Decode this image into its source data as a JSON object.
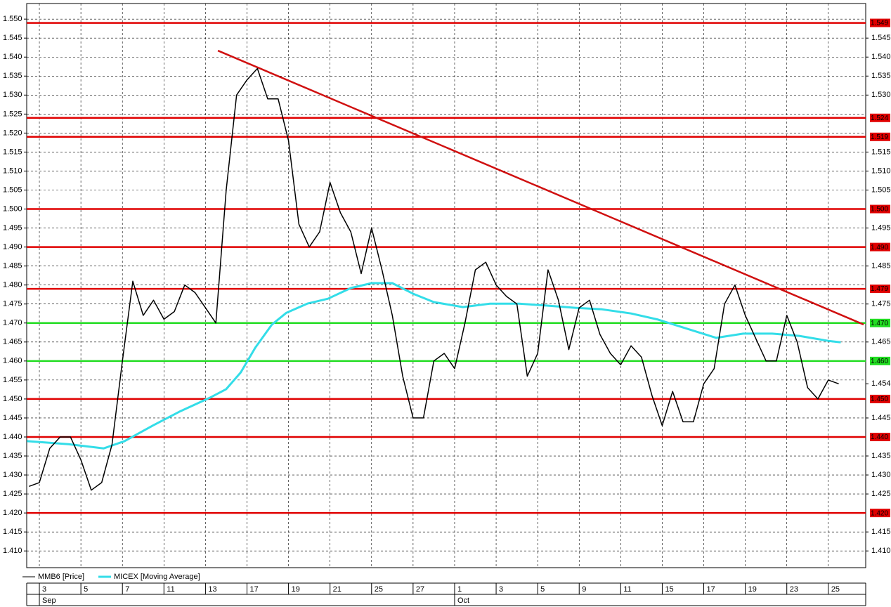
{
  "chart_data": {
    "type": "line",
    "xlim": [
      -0.61,
      39.8
    ],
    "ylim": [
      1.4056,
      1.5541
    ],
    "grid": true,
    "xticks": [
      {
        "value": 0,
        "label": "3"
      },
      {
        "value": 2,
        "label": "5"
      },
      {
        "value": 4,
        "label": "7"
      },
      {
        "value": 6,
        "label": "11"
      },
      {
        "value": 8,
        "label": "13"
      },
      {
        "value": 10,
        "label": "17"
      },
      {
        "value": 12,
        "label": "19"
      },
      {
        "value": 14,
        "label": "21"
      },
      {
        "value": 16,
        "label": "25"
      },
      {
        "value": 18,
        "label": "27"
      },
      {
        "value": 20,
        "label": "1"
      },
      {
        "value": 22,
        "label": "3"
      },
      {
        "value": 24,
        "label": "5"
      },
      {
        "value": 26,
        "label": "9"
      },
      {
        "value": 28,
        "label": "11"
      },
      {
        "value": 30,
        "label": "15"
      },
      {
        "value": 32,
        "label": "17"
      },
      {
        "value": 34,
        "label": "19"
      },
      {
        "value": 36,
        "label": "23"
      },
      {
        "value": 38,
        "label": "25"
      }
    ],
    "months": [
      {
        "value": 0,
        "label": "Sep"
      },
      {
        "value": 20,
        "label": "Oct"
      }
    ],
    "yticks": [
      {
        "value": 1.41,
        "label": "1.410"
      },
      {
        "value": 1.415,
        "label": "1.415"
      },
      {
        "value": 1.42,
        "label": "1.420"
      },
      {
        "value": 1.425,
        "label": "1.425"
      },
      {
        "value": 1.43,
        "label": "1.430"
      },
      {
        "value": 1.435,
        "label": "1.435"
      },
      {
        "value": 1.44,
        "label": "1.440"
      },
      {
        "value": 1.445,
        "label": "1.445"
      },
      {
        "value": 1.45,
        "label": "1.450"
      },
      {
        "value": 1.455,
        "label": "1.455"
      },
      {
        "value": 1.46,
        "label": "1.460"
      },
      {
        "value": 1.465,
        "label": "1.465"
      },
      {
        "value": 1.47,
        "label": "1.470"
      },
      {
        "value": 1.475,
        "label": "1.475"
      },
      {
        "value": 1.48,
        "label": "1.480"
      },
      {
        "value": 1.485,
        "label": "1.485"
      },
      {
        "value": 1.49,
        "label": "1.490"
      },
      {
        "value": 1.495,
        "label": "1.495"
      },
      {
        "value": 1.5,
        "label": "1.500"
      },
      {
        "value": 1.505,
        "label": "1.505"
      },
      {
        "value": 1.51,
        "label": "1.510"
      },
      {
        "value": 1.515,
        "label": "1.515"
      },
      {
        "value": 1.52,
        "label": "1.520"
      },
      {
        "value": 1.525,
        "label": "1.525"
      },
      {
        "value": 1.53,
        "label": "1.530"
      },
      {
        "value": 1.535,
        "label": "1.535"
      },
      {
        "value": 1.54,
        "label": "1.540"
      },
      {
        "value": 1.545,
        "label": "1.545"
      },
      {
        "value": 1.55,
        "label": "1.550"
      }
    ],
    "y2ticks": [
      {
        "value": 1.41,
        "label": "1.410"
      },
      {
        "value": 1.415,
        "label": "1.415"
      },
      {
        "value": 1.425,
        "label": "1.425"
      },
      {
        "value": 1.43,
        "label": "1.430"
      },
      {
        "value": 1.435,
        "label": "1.435"
      },
      {
        "value": 1.445,
        "label": "1.445"
      },
      {
        "value": 1.454,
        "label": "1.454"
      },
      {
        "value": 1.465,
        "label": "1.465"
      },
      {
        "value": 1.475,
        "label": "1.475"
      },
      {
        "value": 1.485,
        "label": "1.485"
      },
      {
        "value": 1.495,
        "label": "1.495"
      },
      {
        "value": 1.505,
        "label": "1.505"
      },
      {
        "value": 1.51,
        "label": "1.510"
      },
      {
        "value": 1.515,
        "label": "1.515"
      },
      {
        "value": 1.53,
        "label": "1.530"
      },
      {
        "value": 1.535,
        "label": "1.535"
      },
      {
        "value": 1.54,
        "label": "1.540"
      },
      {
        "value": 1.545,
        "label": "1.545"
      }
    ],
    "levels": [
      {
        "value": 1.549,
        "label": "1.549",
        "color": "#e00000"
      },
      {
        "value": 1.524,
        "label": "1.524",
        "color": "#e00000"
      },
      {
        "value": 1.519,
        "label": "1.519",
        "color": "#e00000"
      },
      {
        "value": 1.5,
        "label": "1.500",
        "color": "#e00000"
      },
      {
        "value": 1.49,
        "label": "1.490",
        "color": "#e00000"
      },
      {
        "value": 1.479,
        "label": "1.479",
        "color": "#e00000"
      },
      {
        "value": 1.47,
        "label": "1.470",
        "color": "#22dd22"
      },
      {
        "value": 1.46,
        "label": "1.460",
        "color": "#22dd22"
      },
      {
        "value": 1.45,
        "label": "1.450",
        "color": "#e00000"
      },
      {
        "value": 1.44,
        "label": "1.440",
        "color": "#e00000"
      },
      {
        "value": 1.42,
        "label": "1.420",
        "color": "#e00000"
      }
    ],
    "trendline": {
      "x": [
        8.6,
        39.7
      ],
      "y": [
        1.5417,
        1.4696
      ],
      "color": "#d01010"
    },
    "series": [
      {
        "name": "MMB6 [Price]",
        "color": "#000000",
        "x": [
          -0.5,
          0,
          0.5,
          1,
          1.5,
          2,
          2.5,
          3,
          3.5,
          4,
          4.5,
          5,
          5.5,
          6,
          6.5,
          7,
          7.5,
          8,
          8.5,
          9,
          9.5,
          10,
          10.5,
          11,
          11.5,
          12,
          12.5,
          13,
          13.5,
          14,
          14.5,
          15,
          15.5,
          16,
          16.5,
          17,
          17.5,
          18,
          18.5,
          19,
          19.5,
          20,
          20.5,
          21,
          21.5,
          22,
          22.5,
          23,
          23.5,
          24,
          24.5,
          25,
          25.5,
          26,
          26.5,
          27,
          27.5,
          28,
          28.5,
          29,
          29.5,
          30,
          30.5,
          31,
          31.5,
          32,
          32.5,
          33,
          33.5,
          34,
          34.5,
          35,
          35.5,
          36,
          36.5,
          37,
          37.5,
          38,
          38.5
        ],
        "values": [
          1.427,
          1.428,
          1.437,
          1.44,
          1.44,
          1.434,
          1.426,
          1.428,
          1.438,
          1.46,
          1.481,
          1.472,
          1.476,
          1.471,
          1.473,
          1.48,
          1.478,
          1.474,
          1.47,
          1.505,
          1.53,
          1.534,
          1.537,
          1.529,
          1.529,
          1.518,
          1.496,
          1.49,
          1.494,
          1.507,
          1.499,
          1.494,
          1.483,
          1.495,
          1.484,
          1.472,
          1.456,
          1.445,
          1.445,
          1.46,
          1.462,
          1.458,
          1.47,
          1.484,
          1.486,
          1.48,
          1.477,
          1.475,
          1.456,
          1.462,
          1.484,
          1.476,
          1.463,
          1.474,
          1.476,
          1.467,
          1.462,
          1.459,
          1.464,
          1.461,
          1.451,
          1.443,
          1.452,
          1.444,
          1.444,
          1.454,
          1.458,
          1.475,
          1.48,
          1.472,
          1.466,
          1.46,
          1.46,
          1.472,
          1.465,
          1.453,
          1.45,
          1.455,
          1.454
        ]
      },
      {
        "name": "MICEX [Moving Average]",
        "color": "#33dde8",
        "x": [
          -0.6,
          1.4,
          3.1,
          4.1,
          5.5,
          6.8,
          8.2,
          9.0,
          9.7,
          10.4,
          11.2,
          11.9,
          12.9,
          13.9,
          15.0,
          16.0,
          17.0,
          18.0,
          19.0,
          20.4,
          21.7,
          23.1,
          24.4,
          25.8,
          27.1,
          28.5,
          29.8,
          31.2,
          32.6,
          33.9,
          35.3,
          36.6,
          38.0,
          38.6
        ],
        "values": [
          1.4389,
          1.4381,
          1.437,
          1.4389,
          1.4431,
          1.4468,
          1.4503,
          1.4526,
          1.457,
          1.4635,
          1.4696,
          1.4727,
          1.4751,
          1.4764,
          1.4792,
          1.4805,
          1.4805,
          1.4777,
          1.4755,
          1.4742,
          1.4751,
          1.4751,
          1.4746,
          1.474,
          1.4736,
          1.4725,
          1.4709,
          1.4685,
          1.4661,
          1.4672,
          1.4672,
          1.4666,
          1.4653,
          1.4649
        ]
      }
    ]
  }
}
